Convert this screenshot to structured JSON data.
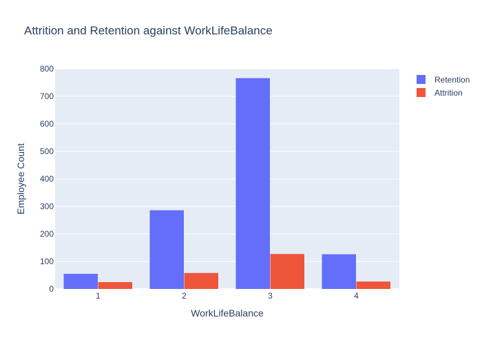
{
  "chart_data": {
    "type": "bar",
    "title": "Attrition and Retention against WorkLifeBalance",
    "xlabel": "WorkLifeBalance",
    "ylabel": "Employee Count",
    "categories": [
      "1",
      "2",
      "3",
      "4"
    ],
    "ylim": [
      0,
      800
    ],
    "yticks": [
      0,
      100,
      200,
      300,
      400,
      500,
      600,
      700,
      800
    ],
    "grid": true,
    "legend_position": "top-right",
    "plot_background": "#E5ECF6",
    "series": [
      {
        "name": "Retention",
        "color": "#636EFA",
        "values": [
          55,
          286,
          766,
          126
        ]
      },
      {
        "name": "Attrition",
        "color": "#EF553B",
        "values": [
          25,
          58,
          127,
          27
        ]
      }
    ]
  }
}
